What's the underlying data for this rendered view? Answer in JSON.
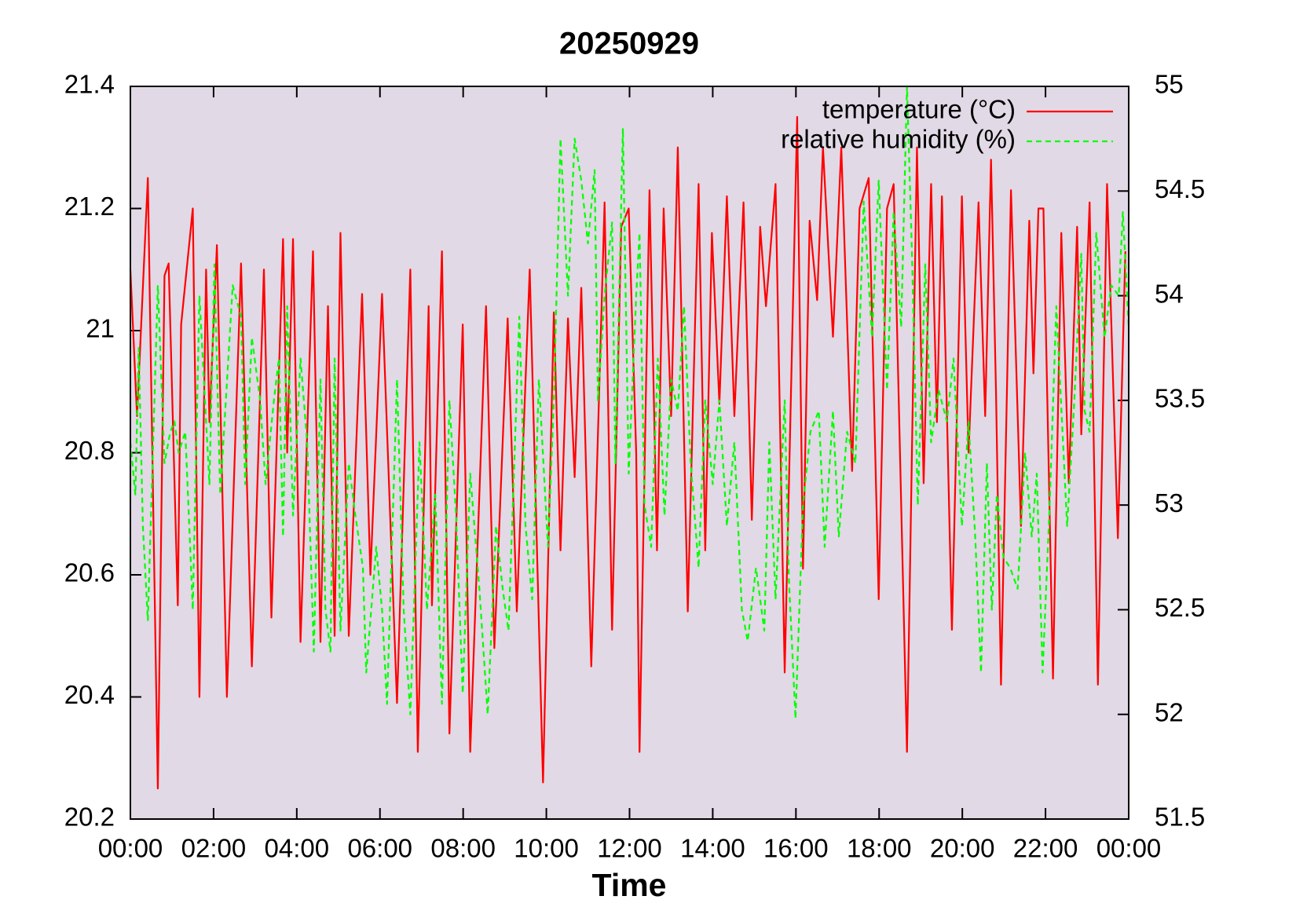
{
  "chart_data": {
    "type": "line",
    "title": "20250929",
    "xlabel": "Time",
    "xlim": [
      0,
      24
    ],
    "xticks": [
      {
        "value": 0,
        "label": "00:00"
      },
      {
        "value": 2,
        "label": "02:00"
      },
      {
        "value": 4,
        "label": "04:00"
      },
      {
        "value": 6,
        "label": "06:00"
      },
      {
        "value": 8,
        "label": "08:00"
      },
      {
        "value": 10,
        "label": "10:00"
      },
      {
        "value": 12,
        "label": "12:00"
      },
      {
        "value": 14,
        "label": "14:00"
      },
      {
        "value": 16,
        "label": "16:00"
      },
      {
        "value": 18,
        "label": "18:00"
      },
      {
        "value": 20,
        "label": "20:00"
      },
      {
        "value": 22,
        "label": "22:00"
      },
      {
        "value": 24,
        "label": "00:00"
      }
    ],
    "ylim": [
      20.2,
      21.4
    ],
    "yticks": [
      20.2,
      20.4,
      20.6,
      20.8,
      21,
      21.2,
      21.4
    ],
    "y2lim": [
      51.5,
      55
    ],
    "y2ticks": [
      51.5,
      52,
      52.5,
      53,
      53.5,
      54,
      54.5,
      55
    ],
    "legend": "top-right",
    "grid": false,
    "background": "#e1d9e5",
    "series": [
      {
        "name": "temperature (°C)",
        "color": "#ff0000",
        "dash": false,
        "x": [
          0,
          0.16,
          0.42,
          0.66,
          0.82,
          0.92,
          1.14,
          1.22,
          1.5,
          1.66,
          1.82,
          1.9,
          2.08,
          2.32,
          2.66,
          2.92,
          3.21,
          3.39,
          3.67,
          3.77,
          3.91,
          4.09,
          4.39,
          4.57,
          4.75,
          4.91,
          5.05,
          5.25,
          5.57,
          5.77,
          6.05,
          6.41,
          6.73,
          6.91,
          7.17,
          7.25,
          7.49,
          7.67,
          7.99,
          8.17,
          8.55,
          8.75,
          9.07,
          9.29,
          9.6,
          9.92,
          10.18,
          10.34,
          10.52,
          10.68,
          10.84,
          11.08,
          11.4,
          11.58,
          11.8,
          11.98,
          12.16,
          12.24,
          12.48,
          12.66,
          12.82,
          13,
          13.16,
          13.4,
          13.66,
          13.82,
          13.98,
          14.16,
          14.34,
          14.52,
          14.74,
          14.94,
          15.14,
          15.28,
          15.51,
          15.73,
          16.03,
          16.17,
          16.33,
          16.51,
          16.65,
          16.89,
          17.09,
          17.35,
          17.53,
          17.75,
          17.99,
          18.19,
          18.35,
          18.67,
          18.91,
          19.07,
          19.25,
          19.39,
          19.51,
          19.75,
          19.99,
          20.15,
          20.39,
          20.55,
          20.69,
          20.81,
          20.93,
          21.17,
          21.41,
          21.61,
          21.71,
          21.83,
          21.95,
          22.18,
          22.38,
          22.56,
          22.76,
          22.86,
          23.06,
          23.26,
          23.48,
          23.74,
          23.92
        ],
        "values": [
          21.1,
          20.86,
          21.25,
          20.25,
          21.09,
          21.11,
          20.55,
          21.01,
          21.2,
          20.4,
          21.1,
          20.85,
          21.14,
          20.4,
          21.11,
          20.45,
          21.1,
          20.53,
          21.15,
          20.8,
          21.15,
          20.49,
          21.13,
          20.49,
          21.04,
          20.5,
          21.16,
          20.5,
          21.06,
          20.6,
          21.06,
          20.39,
          21.1,
          20.31,
          21.04,
          20.55,
          21.13,
          20.34,
          21.01,
          20.31,
          21.04,
          20.48,
          21.02,
          20.54,
          21.1,
          20.26,
          21.03,
          20.64,
          21.02,
          20.76,
          21.07,
          20.45,
          21.21,
          20.51,
          21.17,
          21.2,
          20.8,
          20.31,
          21.23,
          20.64,
          21.2,
          20.86,
          21.3,
          20.54,
          21.24,
          20.64,
          21.16,
          20.88,
          21.22,
          20.86,
          21.21,
          20.69,
          21.17,
          21.04,
          21.24,
          20.44,
          21.35,
          20.61,
          21.18,
          21.05,
          21.3,
          20.99,
          21.3,
          20.77,
          21.2,
          21.25,
          20.56,
          21.2,
          21.24,
          20.31,
          21.3,
          20.75,
          21.24,
          20.85,
          21.22,
          20.51,
          21.22,
          20.8,
          21.21,
          20.86,
          21.28,
          20.9,
          20.42,
          21.23,
          20.68,
          21.18,
          20.93,
          21.2,
          21.2,
          20.43,
          21.16,
          20.75,
          21.17,
          20.83,
          21.21,
          20.42,
          21.24,
          20.66,
          21.13
        ]
      },
      {
        "name": "relative humidity (%)",
        "color": "#00ff00",
        "dash": true,
        "axis": "y2",
        "x": [
          0,
          0.12,
          0.2,
          0.3,
          0.42,
          0.66,
          0.82,
          0.96,
          1.06,
          1.16,
          1.32,
          1.5,
          1.66,
          1.9,
          2.02,
          2.16,
          2.46,
          2.66,
          2.76,
          2.92,
          3.12,
          3.25,
          3.45,
          3.57,
          3.67,
          3.77,
          3.91,
          4.09,
          4.25,
          4.41,
          4.57,
          4.69,
          4.81,
          4.91,
          5.05,
          5.25,
          5.41,
          5.59,
          5.67,
          5.91,
          6.05,
          6.17,
          6.41,
          6.57,
          6.73,
          6.95,
          7.13,
          7.33,
          7.49,
          7.67,
          7.83,
          7.99,
          8.17,
          8.39,
          8.59,
          8.79,
          8.95,
          9.09,
          9.35,
          9.5,
          9.66,
          9.82,
          10.04,
          10.18,
          10.34,
          10.52,
          10.68,
          10.84,
          11,
          11.16,
          11.24,
          11.4,
          11.58,
          11.66,
          11.84,
          11.98,
          12.16,
          12.24,
          12.36,
          12.52,
          12.68,
          12.84,
          13,
          13.16,
          13.31,
          13.47,
          13.66,
          13.82,
          14,
          14.16,
          14.34,
          14.52,
          14.7,
          14.84,
          15.04,
          15.24,
          15.36,
          15.51,
          15.73,
          15.83,
          15.99,
          16.17,
          16.35,
          16.55,
          16.69,
          16.89,
          17.03,
          17.23,
          17.43,
          17.63,
          17.83,
          17.99,
          18.19,
          18.35,
          18.53,
          18.67,
          18.79,
          18.93,
          19.11,
          19.25,
          19.43,
          19.63,
          19.79,
          19.99,
          20.15,
          20.31,
          20.45,
          20.59,
          20.71,
          20.83,
          20.99,
          21.15,
          21.33,
          21.51,
          21.67,
          21.79,
          21.93,
          22.1,
          22.26,
          22.52,
          22.68,
          22.86,
          22.94,
          23.06,
          23.22,
          23.42,
          23.58,
          23.76,
          23.86,
          24
        ],
        "values": [
          53.3,
          53.05,
          53.75,
          52.9,
          52.45,
          54.05,
          53.2,
          53.35,
          53.4,
          53.25,
          53.35,
          52.5,
          54,
          53.1,
          54.15,
          53.05,
          54.05,
          53.9,
          53.1,
          53.8,
          53.5,
          53.1,
          53.5,
          53.7,
          52.85,
          53.95,
          52.95,
          53.7,
          53.3,
          52.3,
          53.6,
          52.5,
          52.3,
          53.7,
          52.4,
          53.2,
          52.95,
          52.7,
          52.2,
          52.8,
          52.5,
          52.05,
          53.6,
          52.5,
          52,
          53.3,
          52.5,
          53.05,
          52.05,
          53.5,
          52.95,
          52.1,
          53.15,
          52.6,
          52,
          52.9,
          52.6,
          52.4,
          53.9,
          52.9,
          52.55,
          53.6,
          52.8,
          53.5,
          54.75,
          54,
          54.75,
          54.55,
          54.25,
          54.6,
          53.5,
          54,
          54.35,
          53.2,
          54.8,
          53.15,
          54,
          54.3,
          53,
          52.8,
          53.7,
          52.95,
          53.6,
          53.45,
          53.95,
          53.2,
          52.7,
          53.5,
          53.1,
          53.5,
          52.9,
          53.3,
          52.5,
          52.35,
          52.7,
          52.4,
          53.3,
          52.55,
          53.5,
          52.65,
          51.98,
          53,
          53.35,
          53.45,
          52.8,
          53.45,
          52.85,
          53.35,
          53.2,
          54.45,
          53.8,
          54.55,
          53.55,
          54.4,
          53.85,
          55,
          54.2,
          53,
          54.15,
          53.3,
          53.55,
          53.4,
          53.7,
          52.9,
          53.4,
          52.85,
          52.2,
          53.2,
          52.5,
          53.05,
          52.75,
          52.7,
          52.6,
          53.25,
          52.85,
          53.15,
          52.2,
          53,
          53.95,
          52.9,
          53.45,
          54.2,
          53.45,
          53.35,
          54.3,
          53.8,
          54.05,
          54,
          54.4,
          53.85
        ]
      }
    ]
  }
}
